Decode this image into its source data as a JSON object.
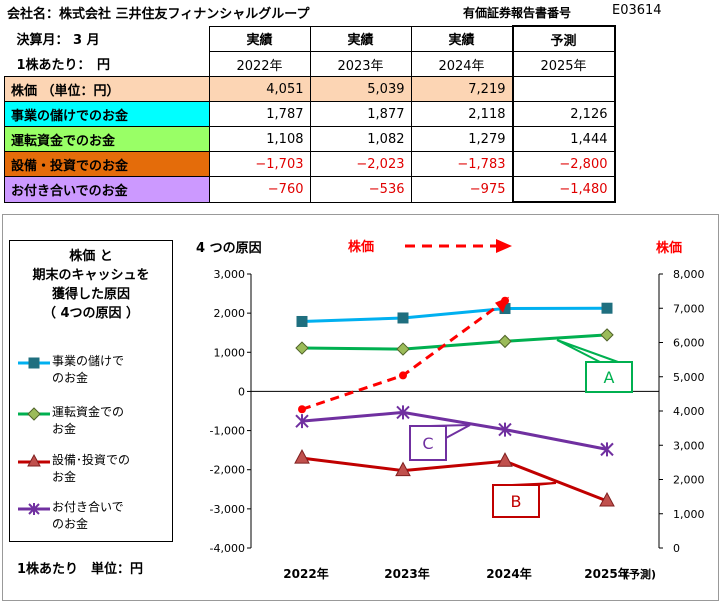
{
  "header": {
    "company_label": "会社名：株式会社 三井住友フィナンシャルグループ",
    "report_no_label": "有価証券報告書番号",
    "report_no": "E03614",
    "fiscal_month": "決算月： 3 月",
    "per_share": "1株あたり：　円"
  },
  "table": {
    "col_types": [
      "実績",
      "実績",
      "実績",
      "予測"
    ],
    "years": [
      "2022年",
      "2023年",
      "2024年",
      "2025年"
    ],
    "rows": [
      {
        "label": "株価 （単位：円）",
        "bg": "#fcd5b4",
        "values": [
          "4,051",
          "5,039",
          "7,219",
          ""
        ]
      },
      {
        "label": "事業の儲けでのお金",
        "bg": "#00ffff",
        "values": [
          "1,787",
          "1,877",
          "2,118",
          "2,126"
        ]
      },
      {
        "label": "運転資金でのお金",
        "bg": "#99ff66",
        "values": [
          "1,108",
          "1,082",
          "1,279",
          "1,444"
        ]
      },
      {
        "label": "設備・投資でのお金",
        "bg": "#e46c0a",
        "values": [
          "−1,703",
          "−2,023",
          "−1,783",
          "−2,800"
        ]
      },
      {
        "label": "お付き合いでのお金",
        "bg": "#cc99ff",
        "values": [
          "−760",
          "−536",
          "−975",
          "−1,480"
        ]
      }
    ]
  },
  "legend": {
    "title_lines": [
      "株価 と",
      "期末のキャッシュを",
      "獲得した原因",
      "（ 4つの原因 ）"
    ],
    "items": [
      {
        "line1": "事業の儲けで",
        "line2": "のお金"
      },
      {
        "line1": "運転資金での",
        "line2": "お金"
      },
      {
        "line1": "設備･投資での",
        "line2": "お金"
      },
      {
        "line1": "お付き合いで",
        "line2": "のお金"
      }
    ],
    "unit_note": "1株あたり　単位：円"
  },
  "chart_data": {
    "type": "line",
    "title": "4 つの原因",
    "stock_label": "株価",
    "right_axis_label": "株価",
    "categories": [
      "2022年",
      "2023年",
      "2024年",
      "2025年"
    ],
    "forecast_note": "(予測)",
    "ylim": [
      -4000,
      3000
    ],
    "y_ticks": [
      "3,000",
      "2,000",
      "1,000",
      "0",
      "-1,000",
      "-2,000",
      "-3,000",
      "-4,000"
    ],
    "y2lim": [
      0,
      8000
    ],
    "y2_ticks": [
      "8,000",
      "7,000",
      "6,000",
      "5,000",
      "4,000",
      "3,000",
      "2,000",
      "1,000",
      "0"
    ],
    "series": [
      {
        "name": "事業の儲けでのお金",
        "color": "#00b0f0",
        "marker": "square",
        "values": [
          1787,
          1877,
          2118,
          2126
        ]
      },
      {
        "name": "運転資金でのお金",
        "color": "#00b050",
        "marker": "diamond",
        "values": [
          1108,
          1082,
          1279,
          1444
        ]
      },
      {
        "name": "設備・投資でのお金",
        "color": "#c00000",
        "marker": "triangle",
        "values": [
          -1703,
          -2023,
          -1783,
          -2800
        ]
      },
      {
        "name": "お付き合いでのお金",
        "color": "#7030a0",
        "marker": "star",
        "values": [
          -760,
          -536,
          -975,
          -1480
        ]
      }
    ],
    "stock_series": {
      "name": "株価",
      "color": "#ff0000",
      "axis": "right",
      "values": [
        4051,
        5039,
        7219
      ]
    },
    "callouts": [
      {
        "text": "A",
        "color": "#00b050"
      },
      {
        "text": "B",
        "color": "#c00000"
      },
      {
        "text": "C",
        "color": "#7030a0"
      }
    ]
  }
}
